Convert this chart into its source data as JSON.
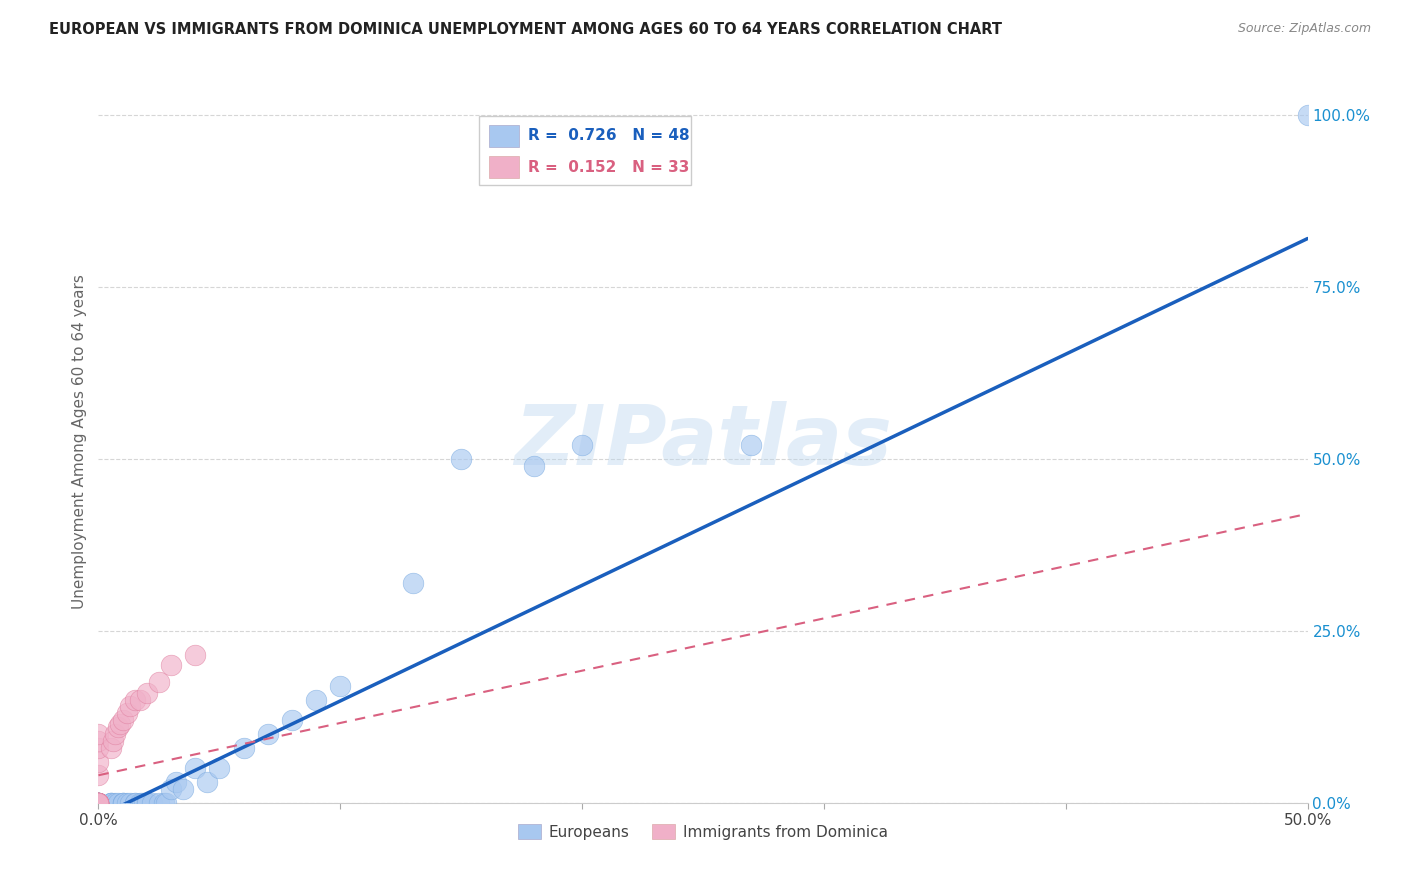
{
  "title": "EUROPEAN VS IMMIGRANTS FROM DOMINICA UNEMPLOYMENT AMONG AGES 60 TO 64 YEARS CORRELATION CHART",
  "source": "Source: ZipAtlas.com",
  "ylabel": "Unemployment Among Ages 60 to 64 years",
  "xlim": [
    0.0,
    0.5
  ],
  "ylim": [
    0.0,
    1.05
  ],
  "xticks": [
    0.0,
    0.1,
    0.2,
    0.3,
    0.4,
    0.5
  ],
  "yticks": [
    0.0,
    0.25,
    0.5,
    0.75,
    1.0
  ],
  "ytick_labels": [
    "0.0%",
    "25.0%",
    "50.0%",
    "75.0%",
    "100.0%"
  ],
  "xtick_labels": [
    "0.0%",
    "",
    "",
    "",
    "",
    "50.0%"
  ],
  "blue_R": 0.726,
  "blue_N": 48,
  "pink_R": 0.152,
  "pink_N": 33,
  "blue_color": "#a8c8f0",
  "pink_color": "#f0b0c8",
  "blue_line_color": "#1a5fbd",
  "pink_line_color": "#d96080",
  "watermark": "ZIPatlas",
  "background_color": "#ffffff",
  "grid_color": "#cccccc",
  "blue_x": [
    0.0,
    0.0,
    0.0,
    0.0,
    0.0,
    0.0,
    0.0,
    0.0,
    0.0,
    0.0,
    0.005,
    0.005,
    0.005,
    0.007,
    0.008,
    0.01,
    0.01,
    0.01,
    0.012,
    0.013,
    0.015,
    0.015,
    0.017,
    0.018,
    0.019,
    0.02,
    0.02,
    0.022,
    0.025,
    0.027,
    0.028,
    0.03,
    0.032,
    0.035,
    0.04,
    0.045,
    0.05,
    0.06,
    0.07,
    0.08,
    0.09,
    0.1,
    0.13,
    0.15,
    0.18,
    0.2,
    0.27,
    0.5
  ],
  "blue_y": [
    0.0,
    0.0,
    0.0,
    0.0,
    0.0,
    0.0,
    0.0,
    0.0,
    0.0,
    0.0,
    0.0,
    0.0,
    0.0,
    0.0,
    0.0,
    0.0,
    0.0,
    0.0,
    0.0,
    0.0,
    0.0,
    0.0,
    0.0,
    0.0,
    0.0,
    0.0,
    0.0,
    0.0,
    0.0,
    0.0,
    0.0,
    0.02,
    0.03,
    0.02,
    0.05,
    0.03,
    0.05,
    0.08,
    0.1,
    0.12,
    0.15,
    0.17,
    0.32,
    0.5,
    0.49,
    0.52,
    0.52,
    1.0
  ],
  "pink_x": [
    0.0,
    0.0,
    0.0,
    0.0,
    0.0,
    0.0,
    0.0,
    0.0,
    0.0,
    0.0,
    0.0,
    0.0,
    0.0,
    0.0,
    0.0,
    0.0,
    0.0,
    0.0,
    0.0,
    0.005,
    0.006,
    0.007,
    0.008,
    0.009,
    0.01,
    0.012,
    0.013,
    0.015,
    0.017,
    0.02,
    0.025,
    0.03,
    0.04
  ],
  "pink_y": [
    0.0,
    0.0,
    0.0,
    0.0,
    0.0,
    0.0,
    0.0,
    0.0,
    0.0,
    0.04,
    0.06,
    0.08,
    0.09,
    0.1,
    0.0,
    0.0,
    0.0,
    0.0,
    0.0,
    0.08,
    0.09,
    0.1,
    0.11,
    0.115,
    0.12,
    0.13,
    0.14,
    0.15,
    0.15,
    0.16,
    0.175,
    0.2,
    0.215
  ],
  "blue_line_x0": 0.0,
  "blue_line_y0": -0.02,
  "blue_line_x1": 0.5,
  "blue_line_y1": 0.82,
  "pink_line_x0": 0.0,
  "pink_line_y0": 0.04,
  "pink_line_x1": 0.5,
  "pink_line_y1": 0.42
}
